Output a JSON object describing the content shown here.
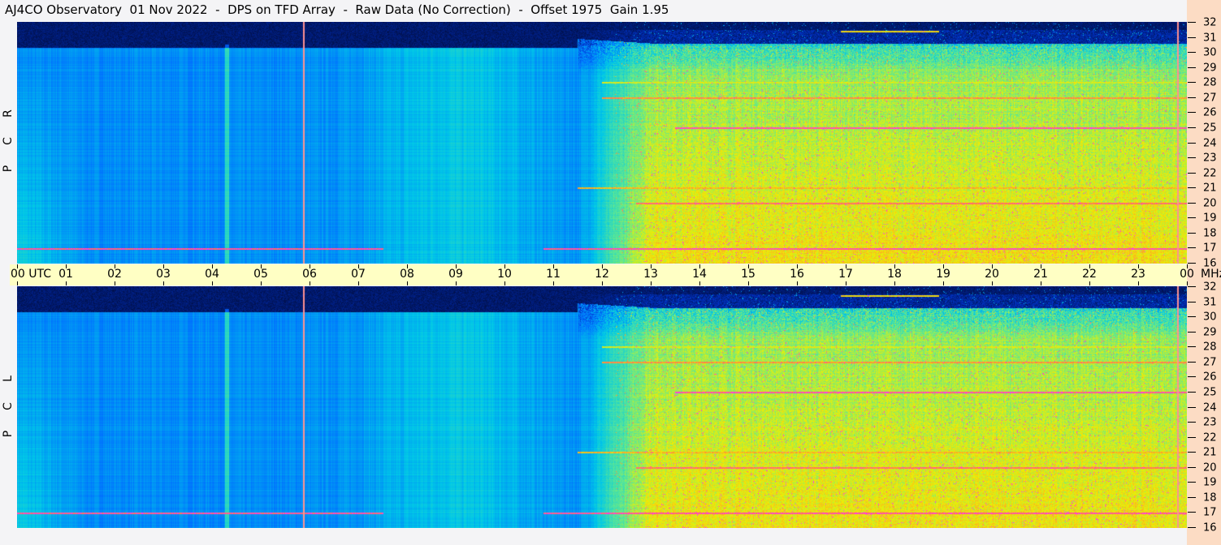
{
  "title": "AJ4CO Observatory  01 Nov 2022  -  DPS on TFD Array  -  Raw Data (No Correction)  -  Offset 1975  Gain 1.95",
  "chart_data": {
    "type": "heatmap",
    "title": "AJ4CO Observatory  01 Nov 2022  -  DPS on TFD Array  -  Raw Data (No Correction)  -  Offset 1975  Gain 1.95",
    "xlabel": "UTC",
    "ylabel": "MHz",
    "xlim": [
      0,
      24
    ],
    "ylim": [
      16,
      32
    ],
    "x_ticks": [
      "00 UTC",
      "01",
      "02",
      "03",
      "04",
      "05",
      "06",
      "07",
      "08",
      "09",
      "10",
      "11",
      "12",
      "13",
      "14",
      "15",
      "16",
      "17",
      "18",
      "19",
      "20",
      "21",
      "22",
      "23",
      "00"
    ],
    "y_ticks": [
      "32",
      "31",
      "30",
      "29",
      "28",
      "27",
      "26",
      "25",
      "24",
      "23",
      "22",
      "21",
      "20",
      "19",
      "18",
      "17",
      "16"
    ],
    "y_unit": "MHz",
    "panels": [
      {
        "name": "RCP",
        "letters": [
          "R",
          "C",
          "P"
        ]
      },
      {
        "name": "LCP",
        "letters": [
          "L",
          "C",
          "P"
        ]
      }
    ],
    "colormap": [
      "#000010",
      "#0030c0",
      "#0070ff",
      "#00c8e8",
      "#60e890",
      "#f0f000",
      "#ff8040",
      "#ff30ff"
    ],
    "rfi_lines": [
      {
        "mhz": 17.0,
        "from": 0,
        "to": 7.5,
        "level": 1.0
      },
      {
        "mhz": 17.0,
        "from": 10.8,
        "to": 24,
        "level": 1.0
      },
      {
        "mhz": 20.0,
        "from": 12.7,
        "to": 24,
        "level": 0.95
      },
      {
        "mhz": 25.0,
        "from": 13.5,
        "to": 24,
        "level": 1.0
      },
      {
        "mhz": 27.0,
        "from": 12,
        "to": 24,
        "level": 0.9
      },
      {
        "mhz": 21.0,
        "from": 11.5,
        "to": 24,
        "level": 0.85
      },
      {
        "mhz": 28.0,
        "from": 12,
        "to": 24,
        "level": 0.75
      },
      {
        "mhz": 31.4,
        "from": 16.9,
        "to": 18.9,
        "level": 0.8
      }
    ],
    "vertical_markers_utc": [
      5.87,
      23.8
    ],
    "colors": {
      "axis_band": "#ffffc4",
      "right_axis": "#fcdcc4",
      "marker": "#ff9090"
    }
  }
}
